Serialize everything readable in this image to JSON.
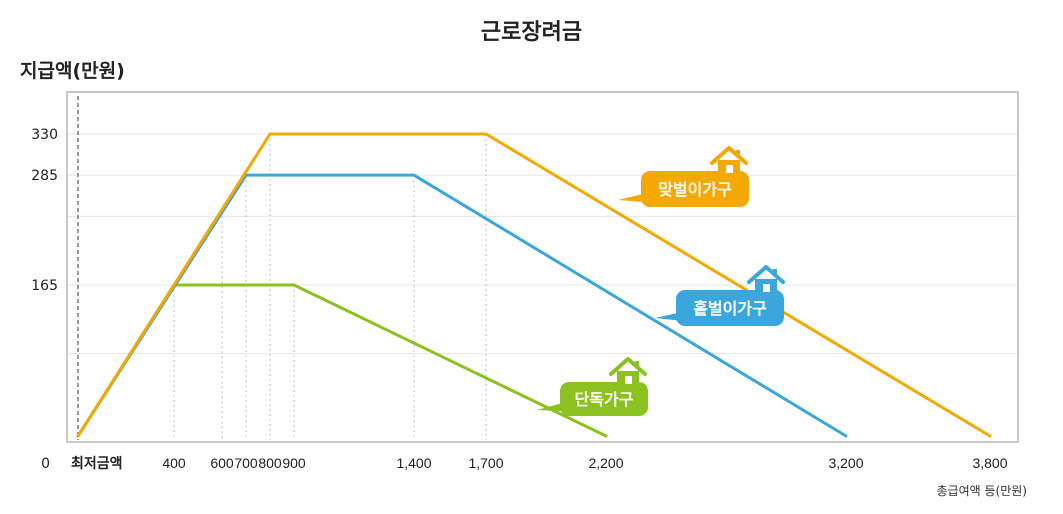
{
  "chart_data": {
    "type": "line",
    "title": "근로장려금",
    "ylabel": "지급액(만원)",
    "xlabel": "총급여액 등(만원)",
    "x_origin_label": "최저금액",
    "xlim": [
      0,
      3800
    ],
    "ylim": [
      0,
      370
    ],
    "y_ticks": [
      {
        "value": 0,
        "label": "0"
      },
      {
        "value": 165,
        "label": "165"
      },
      {
        "value": 285,
        "label": "285"
      },
      {
        "value": 330,
        "label": "330"
      }
    ],
    "x_ticks": [
      {
        "value": 400,
        "label": "400"
      },
      {
        "value": 600,
        "label": "600"
      },
      {
        "value": 700,
        "label": "700"
      },
      {
        "value": 800,
        "label": "800"
      },
      {
        "value": 900,
        "label": "900"
      },
      {
        "value": 1400,
        "label": "1,400"
      },
      {
        "value": 1700,
        "label": "1,700"
      },
      {
        "value": 2200,
        "label": "2,200"
      },
      {
        "value": 3200,
        "label": "3,200"
      },
      {
        "value": 3800,
        "label": "3,800"
      }
    ],
    "grid": true,
    "series": [
      {
        "name": "맞벌이가구",
        "color": "#F5A800",
        "icon": "house-icon",
        "points": [
          [
            0,
            0
          ],
          [
            800,
            330
          ],
          [
            1700,
            330
          ],
          [
            3800,
            0
          ]
        ]
      },
      {
        "name": "홑벌이가구",
        "color": "#3AA6DD",
        "icon": "house-icon",
        "points": [
          [
            0,
            0
          ],
          [
            700,
            285
          ],
          [
            1400,
            285
          ],
          [
            3200,
            0
          ]
        ]
      },
      {
        "name": "단독가구",
        "color": "#8CC21F",
        "icon": "house-icon",
        "points": [
          [
            0,
            0
          ],
          [
            400,
            165
          ],
          [
            900,
            165
          ],
          [
            2200,
            0
          ]
        ]
      }
    ]
  }
}
